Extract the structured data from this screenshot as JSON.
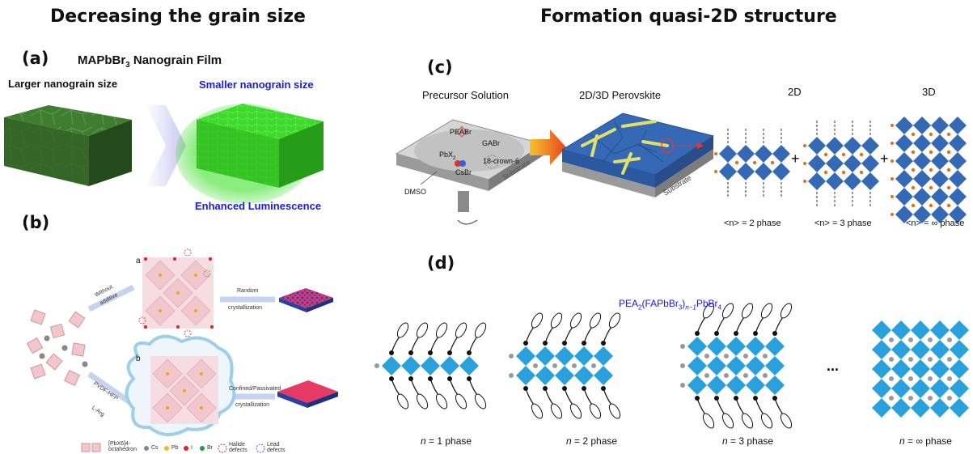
{
  "headings": {
    "left": "Decreasing the grain size",
    "right": "Formation quasi-2D structure"
  },
  "panel_a": {
    "label": "(a)",
    "title_pre": "MAPbBr",
    "title_sub": "3",
    "title_post": " Nanograin Film",
    "left_caption": "Larger nanograin size",
    "right_caption": "Smaller nanograin size",
    "bottom_caption": "Enhanced Luminescence"
  },
  "panel_b": {
    "label": "(b)",
    "sub_a": "a",
    "sub_b": "b",
    "without": "Without",
    "additive": "additive",
    "random": "Random",
    "crystallization1": "crystallization",
    "pvdf": "PVDF-HFP",
    "larg": "L-Arg",
    "confined": "Confined/Passivated",
    "crystallization2": "crystallization",
    "legend": {
      "octa_line1": "[PbX6]4-",
      "octa_line2": "octahedron",
      "cs": "Cs",
      "pb": "Pb",
      "i": "I",
      "br": "Br",
      "halide1": "Halide",
      "halide2": "defects",
      "lead1": "Lead",
      "lead2": "defects"
    }
  },
  "panel_c": {
    "label": "(c)",
    "precursor": "Precursor Solution",
    "perovskite": "2D/3D Perovskite",
    "two_d": "2D",
    "three_d": "3D",
    "peabr": "PEABr",
    "gabr": "GABr",
    "pbx": "PbX",
    "pbx_sub": "2",
    "csbr": "CsBr",
    "crown": "18-crown-6",
    "dmso": "DMSO",
    "substrate1": "Substrate",
    "substrate2": "Substrate",
    "plus1": "+",
    "plus2": "+",
    "phase2": "<n> = 2 phase",
    "phase3": "<n> = 3 phase",
    "phaseinf": "<n> = ∞ phase"
  },
  "panel_d": {
    "label": "(d)",
    "formula": {
      "p1": "PEA",
      "s1": "2",
      "p2": "(FAPbBr",
      "s2": "3",
      "p3": ")",
      "s3": "n−1",
      "p4": "PbBr",
      "s4": "4"
    },
    "ellipsis": "...",
    "n_letter": "n",
    "phase1": " = 1 phase",
    "phase2": " = 2 phase",
    "phase3": " = 3 phase",
    "phaseinf": " = ∞ phase"
  },
  "colors": {
    "accent_blue": "#1a1ae0",
    "perovskite_blue": "#3569b5",
    "octa_blue": "#2aa0dc",
    "film_dark_green": "#3a7a2e",
    "film_bright_green": "#3ee02a",
    "film_pink": "#e63a64"
  }
}
